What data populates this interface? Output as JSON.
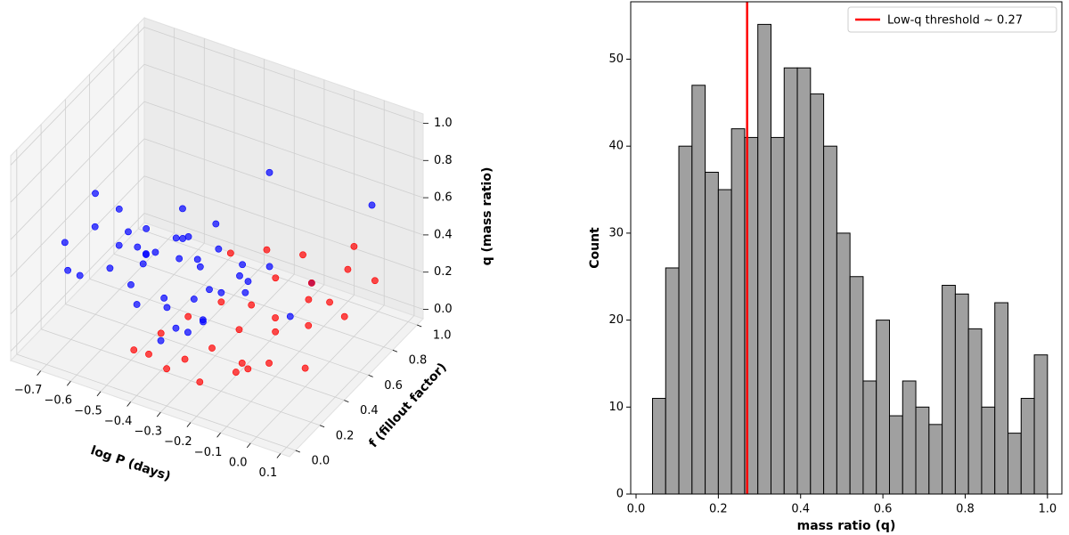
{
  "chart_data": [
    {
      "type": "scatter3d",
      "xlabel": "log P (days)",
      "ylabel": "f (fillout factor)",
      "zlabel": "q (mass ratio)",
      "xlim": [
        -0.8,
        0.13
      ],
      "ylim": [
        -0.05,
        1.05
      ],
      "zlim": [
        -0.05,
        1.05
      ],
      "xticks": [
        {
          "value": -0.7,
          "label": "−0.7"
        },
        {
          "value": -0.6,
          "label": "−0.6"
        },
        {
          "value": -0.5,
          "label": "−0.5"
        },
        {
          "value": -0.4,
          "label": "−0.4"
        },
        {
          "value": -0.3,
          "label": "−0.3"
        },
        {
          "value": -0.2,
          "label": "−0.2"
        },
        {
          "value": -0.1,
          "label": "−0.1"
        },
        {
          "value": 0,
          "label": "0.0"
        },
        0.1
      ],
      "yticks": [
        {
          "value": 0,
          "label": "0.0"
        },
        0.2,
        0.4,
        0.6,
        0.8,
        {
          "value": 1,
          "label": "1.0"
        }
      ],
      "zticks": [
        {
          "value": 0,
          "label": "0.0"
        },
        0.2,
        0.4,
        0.6,
        0.8,
        {
          "value": 1,
          "label": "1.0"
        }
      ],
      "series": [
        {
          "color": "#0000ff",
          "x": [
            -0.68,
            -0.62,
            -0.55,
            -0.5,
            -0.47,
            -0.44,
            -0.4,
            -0.38,
            -0.35,
            -0.33,
            -0.6,
            -0.58,
            -0.52,
            -0.49,
            -0.45,
            -0.42,
            -0.39,
            -0.36,
            -0.31,
            -0.28,
            -0.65,
            -0.57,
            -0.53,
            -0.48,
            -0.43,
            -0.41,
            -0.37,
            -0.34,
            -0.3,
            -0.26,
            -0.7,
            -0.63,
            -0.56,
            -0.51,
            -0.46,
            -0.25,
            -0.2,
            -0.15,
            -0.1,
            -0.05,
            0.02,
            -0.32,
            -0.29,
            -0.22,
            -0.18
          ],
          "y": [
            0.1,
            0.2,
            0.15,
            0.3,
            0.25,
            0.1,
            0.35,
            0.2,
            0.4,
            0.15,
            0.5,
            0.3,
            0.45,
            0.6,
            0.2,
            0.55,
            0.3,
            0.1,
            0.25,
            0.4,
            0.05,
            0.35,
            0.7,
            0.15,
            0.5,
            0.25,
            0.6,
            0.45,
            0.3,
            0.2,
            0.4,
            0.1,
            0.25,
            0.35,
            0.8,
            0.5,
            0.6,
            0.3,
            0.7,
            0.4,
            0.9,
            0.65,
            0.15,
            0.45,
            0.55
          ],
          "z": [
            0.55,
            0.6,
            0.45,
            0.4,
            0.5,
            0.35,
            0.45,
            0.3,
            0.4,
            0.25,
            0.3,
            0.65,
            0.35,
            0.5,
            0.55,
            0.3,
            0.6,
            0.2,
            0.35,
            0.3,
            0.45,
            0.5,
            0.25,
            0.4,
            0.45,
            0.3,
            0.35,
            0.25,
            0.2,
            0.3,
            0.6,
            0.4,
            0.5,
            0.55,
            0.3,
            0.4,
            0.35,
            0.5,
            0.25,
            0.3,
            0.6,
            0.2,
            0.25,
            0.3,
            0.9
          ]
        },
        {
          "color": "#ff0000",
          "x": [
            -0.45,
            -0.4,
            -0.35,
            -0.3,
            -0.28,
            -0.25,
            -0.22,
            -0.2,
            -0.18,
            -0.15,
            -0.12,
            -0.1,
            -0.08,
            -0.05,
            -0.02,
            0.0,
            0.03,
            -0.38,
            -0.33,
            -0.27,
            -0.23,
            -0.19,
            -0.14,
            -0.09,
            -0.06,
            -0.3,
            -0.17,
            -0.11,
            -0.04,
            0.05
          ],
          "y": [
            0.1,
            0.2,
            0.3,
            0.15,
            0.4,
            0.25,
            0.5,
            0.35,
            0.6,
            0.2,
            0.45,
            0.7,
            0.3,
            0.55,
            0.8,
            0.4,
            0.9,
            0.05,
            0.6,
            0.75,
            0.1,
            0.85,
            0.5,
            0.65,
            0.95,
            0.0,
            0.3,
            0.2,
            0.7,
            0.6
          ],
          "z": [
            0.1,
            0.15,
            0.2,
            0.1,
            0.25,
            0.12,
            0.2,
            0.18,
            0.3,
            0.08,
            0.22,
            0.25,
            0.1,
            0.15,
            0.3,
            0.05,
            0.2,
            0.15,
            0.35,
            0.3,
            0.05,
            0.25,
            0.1,
            0.2,
            0.3,
            0.15,
            0.05,
            0.12,
            0.18,
            0.22
          ]
        }
      ]
    },
    {
      "type": "histogram",
      "xlabel": "mass ratio (q)",
      "ylabel": "Count",
      "bins": [
        0.04,
        0.072,
        0.104,
        0.136,
        0.168,
        0.2,
        0.232,
        0.264,
        0.296,
        0.328,
        0.36,
        0.392,
        0.424,
        0.456,
        0.488,
        0.52,
        0.552,
        0.584,
        0.616,
        0.648,
        0.68,
        0.712,
        0.744,
        0.776,
        0.808,
        0.84,
        0.872,
        0.904,
        0.936,
        0.968,
        1.0
      ],
      "values": [
        11,
        26,
        40,
        47,
        37,
        35,
        42,
        41,
        54,
        41,
        49,
        49,
        46,
        40,
        30,
        25,
        13,
        20,
        9,
        13,
        10,
        8,
        24,
        23,
        19,
        10,
        22,
        7,
        11,
        16
      ],
      "color": "#a0a0a0",
      "threshold": 0.27,
      "threshold_color": "#ff0000",
      "threshold_label": "Low-q threshold ~ 0.27",
      "legend": "upper right",
      "xlim": [
        -0.013,
        1.035
      ],
      "ylim": [
        0,
        56.6
      ],
      "xticks": [
        {
          "value": 0,
          "label": "0.0"
        },
        0.2,
        0.4,
        0.6,
        0.8,
        {
          "value": 1,
          "label": "1.0"
        }
      ],
      "yticks": [
        0,
        10,
        20,
        30,
        40,
        50
      ]
    }
  ]
}
